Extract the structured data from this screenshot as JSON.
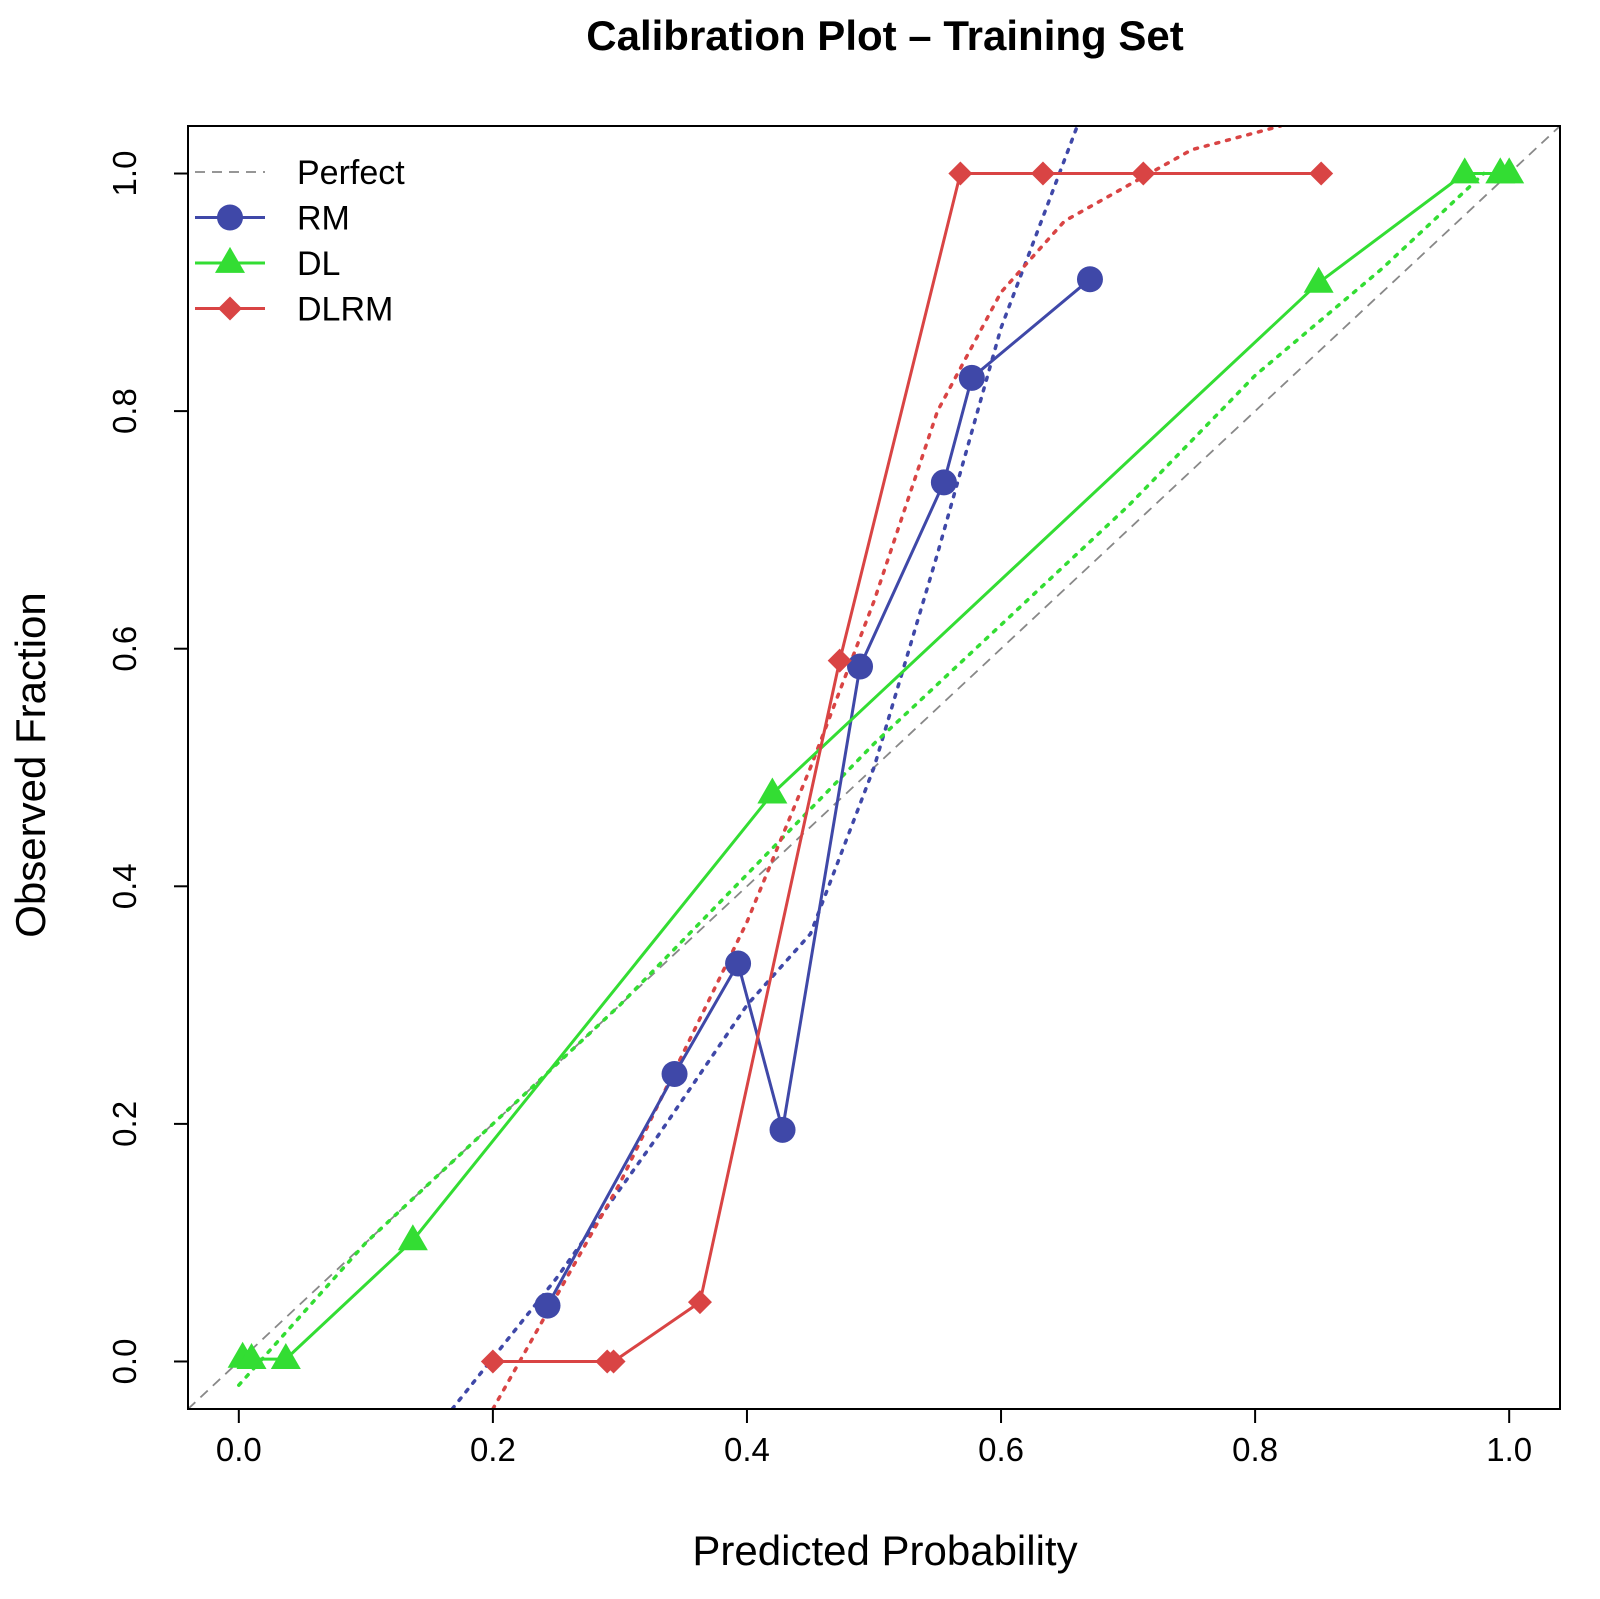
{
  "chart_data": {
    "type": "line",
    "title": "Calibration Plot – Training Set",
    "xlabel": "Predicted Probability",
    "ylabel": "Observed Fraction",
    "xlim": [
      -0.04,
      1.04
    ],
    "ylim": [
      -0.04,
      1.04
    ],
    "xticks": [
      "0.0",
      "0.2",
      "0.4",
      "0.6",
      "0.8",
      "1.0"
    ],
    "yticks": [
      "0.0",
      "0.2",
      "0.4",
      "0.6",
      "0.8",
      "1.0"
    ],
    "tick_values": [
      0,
      0.2,
      0.4,
      0.6,
      0.8,
      1.0
    ],
    "grid": false,
    "legend_position": "top-left",
    "legend": [
      "Perfect",
      "RM",
      "DL",
      "DLRM"
    ],
    "perfect": {
      "name": "Perfect",
      "color": "#888888",
      "x": [
        -0.04,
        1.04
      ],
      "y": [
        -0.04,
        1.04
      ]
    },
    "series": [
      {
        "name": "RM",
        "color": "#3F48A8",
        "marker": "circle",
        "x": [
          0.243,
          0.343,
          0.393,
          0.428,
          0.489,
          0.555,
          0.577,
          0.67
        ],
        "y": [
          0.047,
          0.242,
          0.335,
          0.195,
          0.585,
          0.74,
          0.828,
          0.911
        ]
      },
      {
        "name": "DL",
        "color": "#33DD33",
        "marker": "triangle",
        "x": [
          0.003,
          0.01,
          0.037,
          0.137,
          0.42,
          0.85,
          0.965,
          0.993,
          1.0
        ],
        "y": [
          0.003,
          0.002,
          0.002,
          0.102,
          0.478,
          0.908,
          1.0,
          1.0,
          1.0
        ]
      },
      {
        "name": "DLRM",
        "color": "#D94444",
        "marker": "diamond",
        "x": [
          0.2,
          0.29,
          0.295,
          0.363,
          0.473,
          0.568,
          0.633,
          0.712,
          0.852
        ],
        "y": [
          0.0,
          0.0,
          0.0,
          0.05,
          0.59,
          1.0,
          1.0,
          1.0,
          1.0
        ]
      }
    ],
    "smooth_fits": [
      {
        "name": "RM",
        "color": "#3F48A8",
        "x": [
          0.168,
          0.25,
          0.33,
          0.4,
          0.45,
          0.5,
          0.55,
          0.6,
          0.66
        ],
        "y": [
          -0.04,
          0.07,
          0.19,
          0.3,
          0.36,
          0.5,
          0.68,
          0.87,
          1.04
        ]
      },
      {
        "name": "DL",
        "color": "#33DD33",
        "x": [
          0.0,
          0.1,
          0.2,
          0.3,
          0.4,
          0.5,
          0.6,
          0.7,
          0.8,
          0.9,
          0.98
        ],
        "y": [
          -0.02,
          0.1,
          0.2,
          0.3,
          0.41,
          0.52,
          0.62,
          0.72,
          0.83,
          0.92,
          1.0
        ]
      },
      {
        "name": "DLRM",
        "color": "#D94444",
        "x": [
          0.2,
          0.3,
          0.35,
          0.4,
          0.45,
          0.5,
          0.55,
          0.6,
          0.65,
          0.7,
          0.75,
          0.82
        ],
        "y": [
          -0.04,
          0.15,
          0.26,
          0.37,
          0.5,
          0.64,
          0.8,
          0.9,
          0.96,
          0.99,
          1.02,
          1.04
        ]
      }
    ]
  }
}
